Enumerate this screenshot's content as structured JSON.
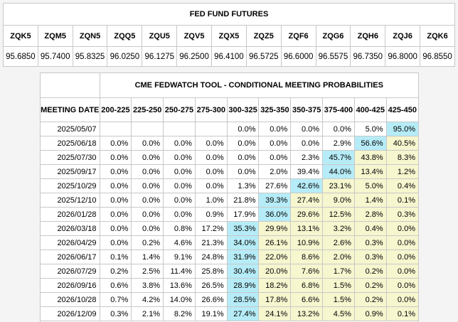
{
  "futures": {
    "title": "FED FUND FUTURES",
    "codes": [
      "ZQK5",
      "ZQM5",
      "ZQN5",
      "ZQQ5",
      "ZQU5",
      "ZQV5",
      "ZQX5",
      "ZQZ5",
      "ZQF6",
      "ZQG6",
      "ZQH6",
      "ZQJ6",
      "ZQK6"
    ],
    "prices": [
      "95.6850",
      "95.7400",
      "95.8325",
      "96.0250",
      "96.1275",
      "96.2500",
      "96.4100",
      "96.5725",
      "96.6000",
      "96.5575",
      "96.7350",
      "96.8000",
      "96.8550"
    ]
  },
  "fedwatch": {
    "title": "CME FEDWATCH TOOL - CONDITIONAL MEETING PROBABILITIES",
    "date_header": "MEETING DATE",
    "ranges": [
      "200-225",
      "225-250",
      "250-275",
      "275-300",
      "300-325",
      "325-350",
      "350-375",
      "375-400",
      "400-425",
      "425-450"
    ],
    "rows": [
      {
        "date": "2025/05/07",
        "values": [
          "",
          "",
          "",
          "",
          "0.0%",
          "0.0%",
          "0.0%",
          "0.0%",
          "5.0%",
          "95.0%"
        ],
        "max": 9,
        "above": []
      },
      {
        "date": "2025/06/18",
        "values": [
          "0.0%",
          "0.0%",
          "0.0%",
          "0.0%",
          "0.0%",
          "0.0%",
          "0.0%",
          "2.9%",
          "56.6%",
          "40.5%"
        ],
        "max": 8,
        "above": [
          9
        ]
      },
      {
        "date": "2025/07/30",
        "values": [
          "0.0%",
          "0.0%",
          "0.0%",
          "0.0%",
          "0.0%",
          "0.0%",
          "2.3%",
          "45.7%",
          "43.8%",
          "8.3%"
        ],
        "max": 7,
        "above": [
          8,
          9
        ]
      },
      {
        "date": "2025/09/17",
        "values": [
          "0.0%",
          "0.0%",
          "0.0%",
          "0.0%",
          "0.0%",
          "2.0%",
          "39.4%",
          "44.0%",
          "13.4%",
          "1.2%"
        ],
        "max": 7,
        "above": [
          8,
          9
        ]
      },
      {
        "date": "2025/10/29",
        "values": [
          "0.0%",
          "0.0%",
          "0.0%",
          "0.0%",
          "1.3%",
          "27.6%",
          "42.6%",
          "23.1%",
          "5.0%",
          "0.4%"
        ],
        "max": 6,
        "above": [
          7,
          8,
          9
        ]
      },
      {
        "date": "2025/12/10",
        "values": [
          "0.0%",
          "0.0%",
          "0.0%",
          "1.0%",
          "21.8%",
          "39.3%",
          "27.4%",
          "9.0%",
          "1.4%",
          "0.1%"
        ],
        "max": 5,
        "above": [
          6,
          7,
          8,
          9
        ]
      },
      {
        "date": "2026/01/28",
        "values": [
          "0.0%",
          "0.0%",
          "0.0%",
          "0.9%",
          "17.9%",
          "36.0%",
          "29.6%",
          "12.5%",
          "2.8%",
          "0.3%"
        ],
        "max": 5,
        "above": [
          6,
          7,
          8,
          9
        ]
      },
      {
        "date": "2026/03/18",
        "values": [
          "0.0%",
          "0.0%",
          "0.8%",
          "17.2%",
          "35.3%",
          "29.9%",
          "13.1%",
          "3.2%",
          "0.4%",
          "0.0%"
        ],
        "max": 4,
        "above": [
          5,
          6,
          7,
          8,
          9
        ]
      },
      {
        "date": "2026/04/29",
        "values": [
          "0.0%",
          "0.2%",
          "4.6%",
          "21.3%",
          "34.0%",
          "26.1%",
          "10.9%",
          "2.6%",
          "0.3%",
          "0.0%"
        ],
        "max": 4,
        "above": [
          5,
          6,
          7,
          8,
          9
        ]
      },
      {
        "date": "2026/06/17",
        "values": [
          "0.1%",
          "1.4%",
          "9.1%",
          "24.8%",
          "31.9%",
          "22.0%",
          "8.6%",
          "2.0%",
          "0.3%",
          "0.0%"
        ],
        "max": 4,
        "above": [
          5,
          6,
          7,
          8,
          9
        ]
      },
      {
        "date": "2026/07/29",
        "values": [
          "0.2%",
          "2.5%",
          "11.4%",
          "25.8%",
          "30.4%",
          "20.0%",
          "7.6%",
          "1.7%",
          "0.2%",
          "0.0%"
        ],
        "max": 4,
        "above": [
          5,
          6,
          7,
          8,
          9
        ]
      },
      {
        "date": "2026/09/16",
        "values": [
          "0.6%",
          "3.8%",
          "13.6%",
          "26.5%",
          "28.9%",
          "18.2%",
          "6.8%",
          "1.5%",
          "0.2%",
          "0.0%"
        ],
        "max": 4,
        "above": [
          5,
          6,
          7,
          8,
          9
        ]
      },
      {
        "date": "2026/10/28",
        "values": [
          "0.7%",
          "4.2%",
          "14.0%",
          "26.6%",
          "28.5%",
          "17.8%",
          "6.6%",
          "1.5%",
          "0.2%",
          "0.0%"
        ],
        "max": 4,
        "above": [
          5,
          6,
          7,
          8,
          9
        ]
      },
      {
        "date": "2026/12/09",
        "values": [
          "0.3%",
          "2.1%",
          "8.2%",
          "19.1%",
          "27.4%",
          "24.1%",
          "13.2%",
          "4.5%",
          "0.9%",
          "0.1%"
        ],
        "max": 4,
        "above": [
          5,
          6,
          7,
          8,
          9
        ]
      }
    ]
  }
}
